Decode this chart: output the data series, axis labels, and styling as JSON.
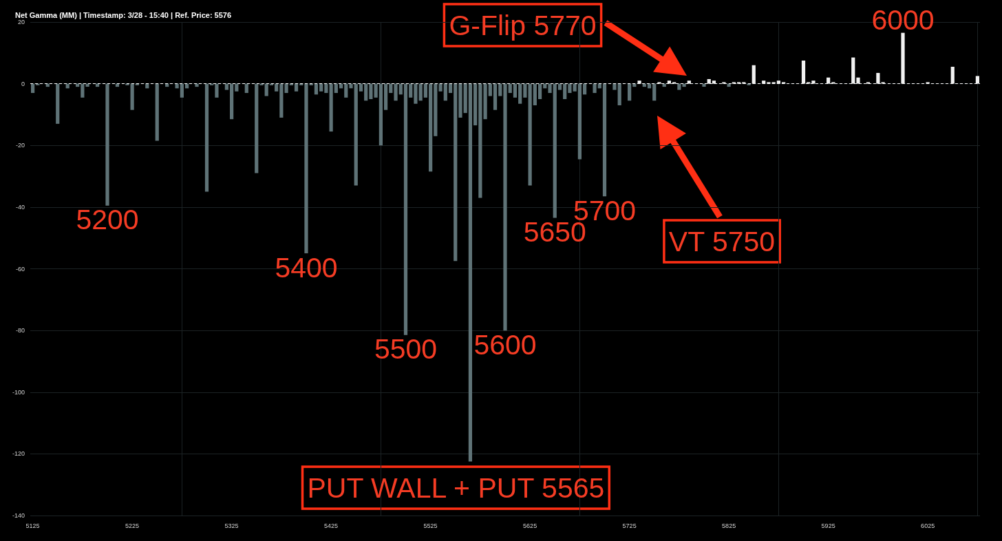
{
  "chart_data": {
    "type": "bar",
    "title": "Net Gamma (MM) | Timestamp: 3/28 - 15:40 | Ref. Price: 5576",
    "x": [
      5125,
      5130,
      5135,
      5140,
      5145,
      5150,
      5155,
      5160,
      5165,
      5170,
      5175,
      5180,
      5185,
      5190,
      5195,
      5200,
      5205,
      5210,
      5215,
      5220,
      5225,
      5230,
      5235,
      5240,
      5245,
      5250,
      5255,
      5260,
      5265,
      5270,
      5275,
      5280,
      5285,
      5290,
      5295,
      5300,
      5305,
      5310,
      5315,
      5320,
      5325,
      5330,
      5335,
      5340,
      5345,
      5350,
      5355,
      5360,
      5365,
      5370,
      5375,
      5380,
      5385,
      5390,
      5395,
      5400,
      5405,
      5410,
      5415,
      5420,
      5425,
      5430,
      5435,
      5440,
      5445,
      5450,
      5455,
      5460,
      5465,
      5470,
      5475,
      5480,
      5485,
      5490,
      5495,
      5500,
      5505,
      5510,
      5515,
      5520,
      5525,
      5530,
      5535,
      5540,
      5545,
      5550,
      5555,
      5560,
      5565,
      5570,
      5575,
      5580,
      5585,
      5590,
      5595,
      5600,
      5605,
      5610,
      5615,
      5620,
      5625,
      5630,
      5635,
      5640,
      5645,
      5650,
      5655,
      5660,
      5665,
      5670,
      5675,
      5680,
      5685,
      5690,
      5695,
      5700,
      5705,
      5710,
      5715,
      5720,
      5725,
      5730,
      5735,
      5740,
      5745,
      5750,
      5755,
      5760,
      5765,
      5770,
      5775,
      5780,
      5785,
      5790,
      5795,
      5800,
      5805,
      5810,
      5815,
      5820,
      5825,
      5830,
      5835,
      5840,
      5845,
      5850,
      5855,
      5860,
      5865,
      5870,
      5875,
      5880,
      5885,
      5890,
      5895,
      5900,
      5905,
      5910,
      5915,
      5920,
      5925,
      5930,
      5935,
      5940,
      5945,
      5950,
      5955,
      5960,
      5965,
      5970,
      5975,
      5980,
      5985,
      5990,
      5995,
      6000,
      6005,
      6010,
      6015,
      6020,
      6025,
      6030,
      6035,
      6040,
      6045,
      6050,
      6055,
      6060,
      6065,
      6070,
      6075
    ],
    "values": [
      -3,
      -0.5,
      0,
      -1,
      0,
      -13,
      0,
      -1.5,
      0,
      -1,
      -4.5,
      -1,
      0,
      -1,
      0,
      -39.5,
      0,
      -1,
      0,
      -0.5,
      -8.5,
      -0.5,
      0,
      -1.5,
      0,
      -18.5,
      0,
      -1,
      0,
      -1.5,
      -4.5,
      -1.5,
      0,
      -1,
      0,
      -35,
      -0.5,
      -4.5,
      0,
      -2,
      -11.5,
      -2.5,
      0,
      -3,
      0,
      -29,
      -0.5,
      -4,
      -0.5,
      -2.5,
      -11,
      -3,
      -0.5,
      -2.5,
      -0.5,
      -55,
      -0.5,
      -3.5,
      -2.5,
      -3,
      -15.5,
      -3,
      -1.5,
      -4.5,
      -1.5,
      -33,
      -2.5,
      -5.5,
      -5,
      -4.5,
      -20,
      -8.5,
      -3,
      -5.5,
      -3.5,
      -81.5,
      -4.5,
      -6.5,
      -5.5,
      -4.5,
      -28.5,
      -17,
      -2.5,
      -5.5,
      -3,
      -57.5,
      -11,
      -9.5,
      -122.5,
      -13.5,
      -37,
      -11.5,
      -4,
      -8.5,
      -4,
      -80,
      -3,
      -4.5,
      -6.5,
      -4.5,
      -33,
      -7,
      -5,
      -1.5,
      -3,
      -43.5,
      -2,
      -5,
      -3,
      -2.5,
      -24.5,
      -3.5,
      0,
      -3,
      -1.5,
      -36.5,
      0,
      -2,
      -7,
      0,
      -5.5,
      -1,
      1,
      -1,
      -1.5,
      -5.5,
      0.5,
      -1,
      1,
      0.5,
      -2,
      -1,
      1,
      0,
      0,
      -1,
      1.5,
      1,
      0,
      0.5,
      -1,
      0.5,
      0.5,
      0.5,
      -0.5,
      6,
      0,
      1,
      0.5,
      0.5,
      1,
      0.5,
      0,
      0,
      0,
      7.5,
      0.5,
      1,
      0,
      0,
      2,
      0.5,
      0,
      0,
      0,
      8.5,
      2,
      0,
      0.5,
      0,
      3.5,
      0.5,
      0,
      0,
      0,
      16.5,
      0,
      0,
      0,
      0,
      0.5,
      0,
      0,
      0,
      0,
      5.5,
      0,
      0,
      0,
      0,
      2.5
    ],
    "colors": [
      "#5f7377",
      "#5f7377",
      "#5f7377",
      "#5f7377",
      "#5f7377",
      "#5f7377",
      "#5f7377",
      "#5f7377",
      "#5f7377",
      "#5f7377",
      "#5f7377",
      "#5f7377",
      "#5f7377",
      "#5f7377",
      "#5f7377",
      "#5f7377",
      "#5f7377",
      "#5f7377",
      "#5f7377",
      "#5f7377",
      "#5f7377",
      "#5f7377",
      "#5f7377",
      "#5f7377",
      "#5f7377",
      "#5f7377",
      "#5f7377",
      "#5f7377",
      "#5f7377",
      "#5f7377",
      "#5f7377",
      "#5f7377",
      "#5f7377",
      "#5f7377",
      "#5f7377",
      "#5f7377",
      "#5f7377",
      "#5f7377",
      "#5f7377",
      "#5f7377",
      "#5f7377",
      "#5f7377",
      "#5f7377",
      "#5f7377",
      "#5f7377",
      "#5f7377",
      "#5f7377",
      "#5f7377",
      "#5f7377",
      "#5f7377",
      "#5f7377",
      "#5f7377",
      "#5f7377",
      "#5f7377",
      "#5f7377",
      "#5f7377",
      "#5f7377",
      "#5f7377",
      "#5f7377",
      "#5f7377",
      "#5f7377",
      "#5f7377",
      "#5f7377",
      "#5f7377",
      "#5f7377",
      "#5f7377",
      "#5f7377",
      "#5f7377",
      "#5f7377",
      "#5f7377",
      "#5f7377",
      "#5f7377",
      "#5f7377",
      "#5f7377",
      "#5f7377",
      "#5f7377",
      "#5f7377",
      "#5f7377",
      "#5f7377",
      "#5f7377",
      "#5f7377",
      "#5f7377",
      "#5f7377",
      "#5f7377",
      "#5f7377",
      "#5f7377",
      "#5f7377",
      "#5f7377",
      "#5f7377",
      "#5f7377",
      "#5f7377",
      "#5f7377",
      "#5f7377",
      "#5f7377",
      "#5f7377",
      "#5f7377",
      "#5f7377",
      "#5f7377",
      "#5f7377",
      "#5f7377",
      "#5f7377",
      "#5f7377",
      "#5f7377",
      "#5f7377",
      "#5f7377",
      "#5f7377",
      "#5f7377",
      "#5f7377",
      "#5f7377",
      "#5f7377",
      "#5f7377",
      "#5f7377",
      "#5f7377",
      "#5f7377",
      "#5f7377",
      "#5f7377",
      "#5f7377",
      "#5f7377",
      "#5f7377",
      "#5f7377",
      "#5f7377",
      "#5f7377",
      "#f2f2f2",
      "#5f7377",
      "#5f7377",
      "#5f7377",
      "#f2f2f2",
      "#5f7377",
      "#f2f2f2",
      "#f2f2f2",
      "#5f7377",
      "#5f7377",
      "#f2f2f2",
      "#5f7377",
      "#5f7377",
      "#5f7377",
      "#f2f2f2",
      "#f2f2f2",
      "#5f7377",
      "#f2f2f2",
      "#5f7377",
      "#f2f2f2",
      "#f2f2f2",
      "#f2f2f2",
      "#5f7377",
      "#f2f2f2",
      "#5f7377",
      "#f2f2f2",
      "#f2f2f2",
      "#f2f2f2",
      "#f2f2f2",
      "#f2f2f2",
      "#5f7377",
      "#5f7377",
      "#5f7377",
      "#f2f2f2",
      "#f2f2f2",
      "#f2f2f2",
      "#5f7377",
      "#5f7377",
      "#f2f2f2",
      "#f2f2f2",
      "#5f7377",
      "#5f7377",
      "#5f7377",
      "#f2f2f2",
      "#f2f2f2",
      "#5f7377",
      "#f2f2f2",
      "#5f7377",
      "#f2f2f2",
      "#f2f2f2",
      "#5f7377",
      "#5f7377",
      "#5f7377",
      "#f2f2f2",
      "#5f7377",
      "#5f7377",
      "#5f7377",
      "#5f7377",
      "#f2f2f2",
      "#5f7377",
      "#5f7377",
      "#5f7377",
      "#5f7377",
      "#f2f2f2",
      "#5f7377",
      "#5f7377",
      "#5f7377",
      "#5f7377",
      "#f2f2f2"
    ],
    "xlim": [
      5122.5,
      6077.5
    ],
    "xticks": [
      5125,
      5225,
      5325,
      5425,
      5525,
      5625,
      5725,
      5825,
      5925,
      6025,
      {
        "value": 5275,
        "label": null
      },
      {
        "value": 5475,
        "label": null
      },
      {
        "value": 5675,
        "label": null
      },
      {
        "value": 5875,
        "label": null
      },
      {
        "value": 6075,
        "label": null
      }
    ],
    "ylim": [
      -140,
      20
    ],
    "yticks": [
      -140,
      -120,
      -100,
      -80,
      -60,
      -40,
      -20,
      0,
      20
    ],
    "grid": true,
    "ref_lines": [
      {
        "axis": "y",
        "value": 0,
        "color": "#ffffff",
        "line_style": "dashed"
      }
    ],
    "annotations": [
      {
        "text": "5200",
        "x": 5200,
        "y": -39.5
      },
      {
        "text": "5400",
        "x": 5400,
        "y": -55
      },
      {
        "text": "5500",
        "x": 5500,
        "y": -81.5
      },
      {
        "text": "5600",
        "x": 5600,
        "y": -80
      },
      {
        "text": "5650",
        "x": 5650,
        "y": -43.5
      },
      {
        "text": "5700",
        "x": 5700,
        "y": -36.5
      },
      {
        "text": "6000",
        "x": 6000,
        "y": 16.5
      },
      "G-Flip 5770",
      "VT 5750",
      {
        "text": "PUT WALL + PUT 5565",
        "x": 5565,
        "y": -122.5
      }
    ]
  }
}
